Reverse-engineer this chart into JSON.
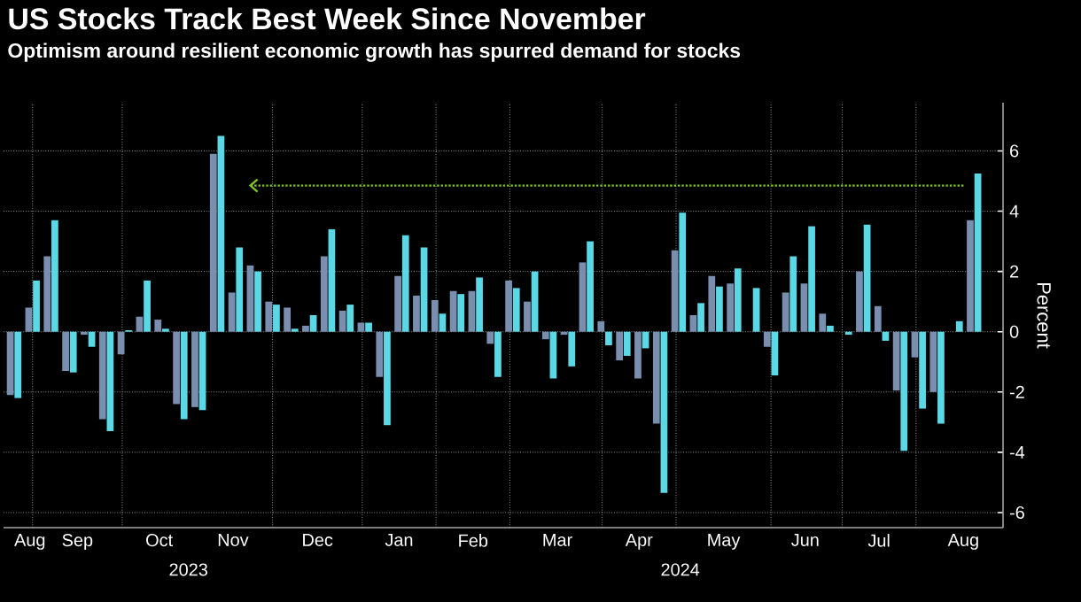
{
  "chart_data": {
    "type": "bar",
    "title": "US Stocks Track Best Week Since November",
    "subtitle": "Optimism around resilient economic growth has spurred demand for stocks",
    "ylabel": "Percent",
    "x": [
      "2023-08-18",
      "2023-08-25",
      "2023-09-01",
      "2023-09-08",
      "2023-09-15",
      "2023-09-22",
      "2023-09-29",
      "2023-10-06",
      "2023-10-13",
      "2023-10-20",
      "2023-10-27",
      "2023-11-03",
      "2023-11-10",
      "2023-11-17",
      "2023-11-24",
      "2023-12-01",
      "2023-12-08",
      "2023-12-15",
      "2023-12-22",
      "2023-12-29",
      "2024-01-05",
      "2024-01-12",
      "2024-01-19",
      "2024-01-26",
      "2024-02-02",
      "2024-02-09",
      "2024-02-16",
      "2024-02-23",
      "2024-03-01",
      "2024-03-08",
      "2024-03-15",
      "2024-03-22",
      "2024-03-29",
      "2024-04-05",
      "2024-04-12",
      "2024-04-19",
      "2024-04-26",
      "2024-05-03",
      "2024-05-10",
      "2024-05-17",
      "2024-05-24",
      "2024-05-31",
      "2024-06-07",
      "2024-06-14",
      "2024-06-21",
      "2024-06-28",
      "2024-07-05",
      "2024-07-12",
      "2024-07-19",
      "2024-07-26",
      "2024-08-02",
      "2024-08-09",
      "2024-08-16"
    ],
    "series": [
      {
        "color": "#7a8fb0",
        "values": [
          -2.1,
          0.8,
          2.5,
          -1.3,
          -0.1,
          -2.9,
          -0.75,
          0.5,
          0.4,
          -2.4,
          -2.5,
          5.9,
          1.3,
          2.2,
          1.0,
          0.8,
          0.2,
          2.5,
          0.7,
          0.3,
          -1.5,
          1.85,
          1.2,
          1.05,
          1.35,
          1.35,
          -0.4,
          1.7,
          1.0,
          -0.25,
          -0.1,
          2.3,
          0.35,
          -0.95,
          -1.55,
          -3.05,
          2.7,
          0.55,
          1.85,
          1.6,
          0.0,
          -0.5,
          1.3,
          1.6,
          0.6,
          0.0,
          2.0,
          0.85,
          -1.95,
          -0.85,
          -2.0,
          0.0,
          3.7
        ]
      },
      {
        "color": "#5ad8e6",
        "values": [
          -2.2,
          1.7,
          3.7,
          -1.35,
          -0.5,
          -3.3,
          0.05,
          1.7,
          0.1,
          -2.9,
          -2.6,
          6.5,
          2.8,
          2.0,
          0.9,
          0.1,
          0.55,
          3.4,
          0.9,
          0.3,
          -3.1,
          3.2,
          2.8,
          0.6,
          1.25,
          1.8,
          -1.5,
          1.45,
          2.0,
          -1.55,
          -1.15,
          3.0,
          -0.45,
          -0.8,
          -0.55,
          -5.35,
          3.95,
          0.95,
          1.5,
          2.1,
          1.45,
          -1.45,
          2.5,
          3.5,
          0.2,
          -0.1,
          3.55,
          -0.3,
          -3.95,
          -2.55,
          -3.05,
          0.35,
          5.25
        ]
      }
    ],
    "xlim": [
      "2023-08-14",
      "2024-08-27"
    ],
    "xticks": [
      {
        "value": "2023-08-25",
        "label": null
      },
      {
        "value": "2023-09-28",
        "label": null
      },
      {
        "value": "2023-11-24",
        "label": null
      },
      {
        "value": "2023-12-28",
        "label": null
      },
      {
        "value": "2024-01-25",
        "label": null
      },
      {
        "value": "2024-02-22",
        "label": null
      },
      {
        "value": "2024-03-28",
        "label": null
      },
      {
        "value": "2024-04-25",
        "label": null
      },
      {
        "value": "2024-05-31",
        "label": null
      },
      {
        "value": "2024-06-27",
        "label": null
      },
      {
        "value": "2024-07-25",
        "label": null
      },
      {
        "value": "2023-08-24",
        "label": "Aug"
      },
      {
        "value": "2023-09-11",
        "label": "Sep"
      },
      {
        "value": "2023-10-12",
        "label": "Oct"
      },
      {
        "value": "2023-11-09",
        "label": "Nov"
      },
      {
        "value": "2023-12-11",
        "label": "Dec"
      },
      {
        "value": "2024-01-11",
        "label": "Jan"
      },
      {
        "value": "2024-02-08",
        "label": "Feb"
      },
      {
        "value": "2024-03-11",
        "label": "Mar"
      },
      {
        "value": "2024-04-11",
        "label": "Apr"
      },
      {
        "value": "2024-05-13",
        "label": "May"
      },
      {
        "value": "2024-06-13",
        "label": "Jun"
      },
      {
        "value": "2024-07-11",
        "label": "Jul"
      },
      {
        "value": "2024-08-12",
        "label": "Aug"
      }
    ],
    "ylim": [
      -6.5,
      7.6
    ],
    "yticks": [
      -6,
      -4,
      -2,
      0,
      2,
      4,
      6
    ],
    "grid": true,
    "ref_lines": [
      {
        "axis": "y",
        "value": 4.85,
        "color": "#7fc31c",
        "line_style": "dotted"
      }
    ],
    "annotations": [
      "2023",
      "2024"
    ]
  }
}
